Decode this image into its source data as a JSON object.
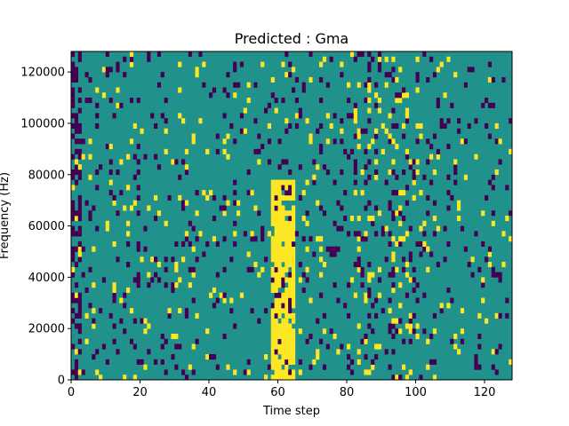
{
  "chart_data": {
    "type": "heatmap",
    "title": "Predicted : Gma",
    "xlabel": "Time step",
    "ylabel": "Frequency (Hz)",
    "xlim": [
      0,
      128
    ],
    "ylim": [
      0,
      128000
    ],
    "x_ticks": [
      0,
      20,
      40,
      60,
      80,
      100,
      120
    ],
    "y_ticks": [
      0,
      20000,
      40000,
      60000,
      80000,
      100000,
      120000
    ],
    "x_tick_labels": [
      "0",
      "20",
      "40",
      "60",
      "80",
      "100",
      "120"
    ],
    "y_tick_labels": [
      "0",
      "20000",
      "40000",
      "60000",
      "80000",
      "100000",
      "120000"
    ],
    "grid": false,
    "colormap": "viridis",
    "colors": {
      "low": "#440154",
      "mid": "#21918c",
      "high": "#fde725"
    },
    "n_time_steps": 128,
    "n_freq_bins": 64,
    "freq_bin_hz": 2000,
    "band_center_step": 61.5,
    "band_halfwidth_steps": 3,
    "band_freq_max_hz": 78000
  }
}
